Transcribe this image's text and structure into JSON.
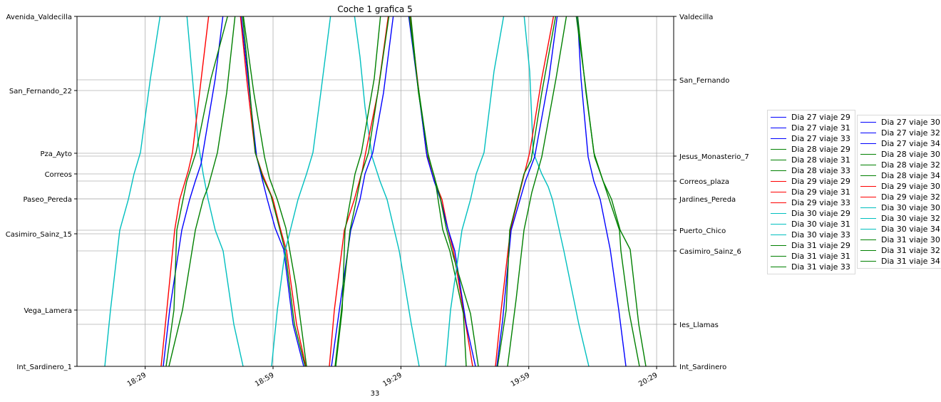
{
  "colors": {
    "Dia 27": "#0000ff",
    "Dia 28": "#008000",
    "Dia 29": "#ff0000",
    "Dia 30": "#00bfbf",
    "Dia 31": "#008000",
    "grid": "#b0b0b0"
  },
  "chart_data": {
    "type": "line",
    "title": "Coche 1 grafica 5",
    "xlabel": "33",
    "x_ticks": [
      "18:29",
      "18:59",
      "19:29",
      "19:59",
      "20:29"
    ],
    "x_range": [
      "18:13",
      "20:33"
    ],
    "y_left_ticks": [
      "Avenida_Valdecilla",
      "San_Fernando_22",
      "Pza_Ayto",
      "Correos",
      "Paseo_Pereda",
      "Casimiro_Sainz_15",
      "Vega_Lamera",
      "Int_Sardinero_1"
    ],
    "y_right_ticks": [
      "Valdecilla",
      "San_Fernando",
      "Jesus_Monasterio_7",
      "Correos_plaza",
      "Jardines_Pereda",
      "Puerto_Chico",
      "Casimiro_Sainz_6",
      "Ies_Llamas",
      "Int_Sardinero"
    ],
    "grid": true,
    "legend_placement": "outside right, two columns",
    "series": [
      {
        "name": "Dia 27 viaje 29",
        "color": "#0000ff"
      },
      {
        "name": "Dia 27 viaje 31",
        "color": "#0000ff"
      },
      {
        "name": "Dia 27 viaje 33",
        "color": "#0000ff"
      },
      {
        "name": "Dia 28 viaje 29",
        "color": "#008000"
      },
      {
        "name": "Dia 28 viaje 31",
        "color": "#008000"
      },
      {
        "name": "Dia 28 viaje 33",
        "color": "#008000"
      },
      {
        "name": "Dia 29 viaje 29",
        "color": "#ff0000"
      },
      {
        "name": "Dia 29 viaje 31",
        "color": "#ff0000"
      },
      {
        "name": "Dia 29 viaje 33",
        "color": "#ff0000"
      },
      {
        "name": "Dia 30 viaje 29",
        "color": "#00bfbf"
      },
      {
        "name": "Dia 30 viaje 31",
        "color": "#00bfbf"
      },
      {
        "name": "Dia 30 viaje 33",
        "color": "#00bfbf"
      },
      {
        "name": "Dia 31 viaje 29",
        "color": "#008000"
      },
      {
        "name": "Dia 31 viaje 31",
        "color": "#008000"
      },
      {
        "name": "Dia 31 viaje 33",
        "color": "#008000"
      },
      {
        "name": "Dia 27 viaje 30",
        "color": "#0000ff"
      },
      {
        "name": "Dia 27 viaje 32",
        "color": "#0000ff"
      },
      {
        "name": "Dia 27 viaje 34",
        "color": "#0000ff"
      },
      {
        "name": "Dia 28 viaje 30",
        "color": "#008000"
      },
      {
        "name": "Dia 28 viaje 32",
        "color": "#008000"
      },
      {
        "name": "Dia 28 viaje 34",
        "color": "#008000"
      },
      {
        "name": "Dia 29 viaje 30",
        "color": "#ff0000"
      },
      {
        "name": "Dia 29 viaje 32",
        "color": "#ff0000"
      },
      {
        "name": "Dia 30 viaje 30",
        "color": "#00bfbf"
      },
      {
        "name": "Dia 30 viaje 32",
        "color": "#00bfbf"
      },
      {
        "name": "Dia 30 viaje 34",
        "color": "#00bfbf"
      },
      {
        "name": "Dia 31 viaje 30",
        "color": "#008000"
      },
      {
        "name": "Dia 31 viaje 32",
        "color": "#008000"
      },
      {
        "name": "Dia 31 viaje 34",
        "color": "#008000"
      }
    ]
  }
}
